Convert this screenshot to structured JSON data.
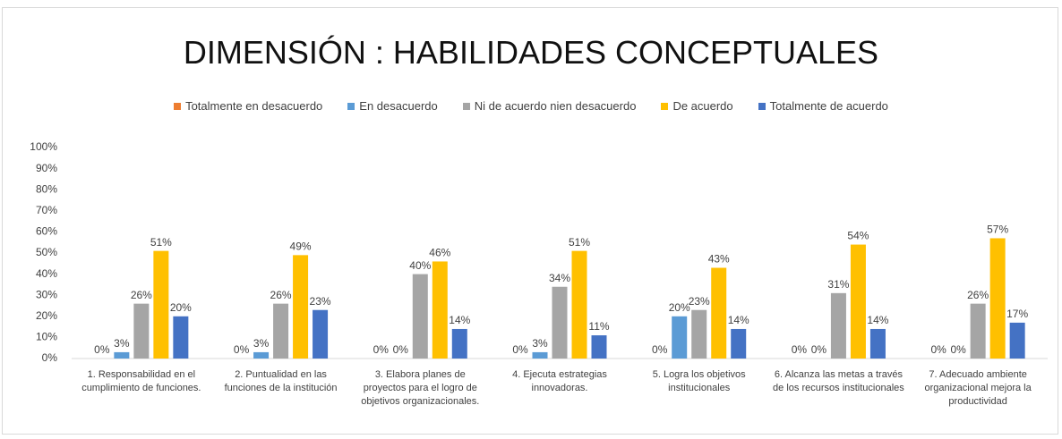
{
  "chart_data": {
    "type": "bar",
    "title": "DIMENSIÓN : HABILIDADES CONCEPTUALES",
    "categories": [
      "1. Responsabilidad en el cumplimiento de funciones.",
      "2. Puntualidad en las funciones de la institución",
      "3. Elabora planes de proyectos para el logro de objetivos organizacionales.",
      "4. Ejecuta estrategias innovadoras.",
      "5. Logra los objetivos institucionales",
      "6. Alcanza las metas a través de los recursos institucionales",
      "7. Adecuado ambiente organizacional mejora la productividad"
    ],
    "series": [
      {
        "name": "Totalmente en desacuerdo",
        "color": "#ed7d31",
        "values": [
          0,
          0,
          0,
          0,
          0,
          0,
          0
        ],
        "value_labels": [
          "0%",
          "0%",
          "0%",
          "0%",
          "0%",
          "0%",
          "0%"
        ]
      },
      {
        "name": "En desacuerdo",
        "color": "#5b9bd5",
        "values": [
          3,
          3,
          0,
          3,
          20,
          0,
          0
        ],
        "value_labels": [
          "3%",
          "3%",
          "0%",
          "3%",
          "20%",
          "0%",
          "0%"
        ]
      },
      {
        "name": "Ni de acuerdo nien desacuerdo",
        "color": "#a5a5a5",
        "values": [
          26,
          26,
          40,
          34,
          23,
          31,
          26
        ],
        "value_labels": [
          "26%",
          "26%",
          "40%",
          "34%",
          "23%",
          "31%",
          "26%"
        ]
      },
      {
        "name": "De acuerdo",
        "color": "#ffc000",
        "values": [
          51,
          49,
          46,
          51,
          43,
          54,
          57
        ],
        "value_labels": [
          "51%",
          "49%",
          "46%",
          "51%",
          "43%",
          "54%",
          "57%"
        ]
      },
      {
        "name": "Totalmente de acuerdo",
        "color": "#4472c4",
        "values": [
          20,
          23,
          14,
          11,
          14,
          14,
          17
        ],
        "value_labels": [
          "20%",
          "23%",
          "14%",
          "11%",
          "14%",
          "14%",
          "17%"
        ]
      }
    ],
    "ylim": [
      0,
      100
    ],
    "yticks": [
      {
        "value": 0,
        "label": "0%"
      },
      {
        "value": 10,
        "label": "10%"
      },
      {
        "value": 20,
        "label": "20%"
      },
      {
        "value": 30,
        "label": "30%"
      },
      {
        "value": 40,
        "label": "40%"
      },
      {
        "value": 50,
        "label": "50%"
      },
      {
        "value": 60,
        "label": "60%"
      },
      {
        "value": 70,
        "label": "70%"
      },
      {
        "value": 80,
        "label": "80%"
      },
      {
        "value": 90,
        "label": "90%"
      },
      {
        "value": 100,
        "label": "100%"
      }
    ],
    "legend": "top"
  }
}
